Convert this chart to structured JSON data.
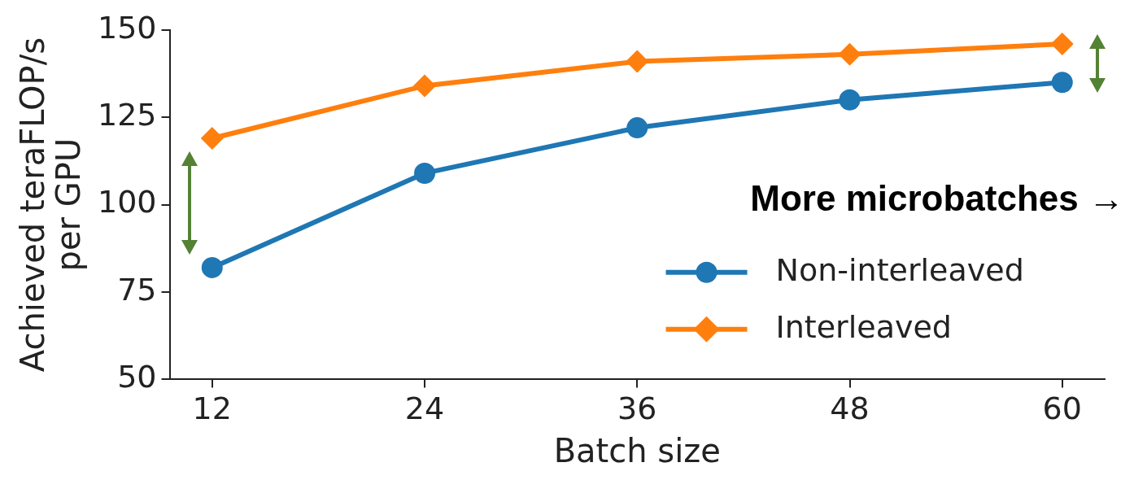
{
  "chart_data": {
    "type": "line",
    "xlabel": "Batch size",
    "ylabel": "Achieved teraFLOP/s per GPU",
    "x": [
      12,
      24,
      36,
      48,
      60
    ],
    "series": [
      {
        "name": "Non-interleaved",
        "color": "#1f77b4",
        "marker": "circle",
        "values": [
          82,
          109,
          122,
          130,
          135
        ]
      },
      {
        "name": "Interleaved",
        "color": "#ff7f0e",
        "marker": "diamond",
        "values": [
          119,
          134,
          141,
          143,
          146
        ]
      }
    ],
    "xlim": [
      9.6,
      62.4
    ],
    "xticks": [
      12,
      24,
      36,
      48,
      60
    ],
    "ylim": [
      50,
      150
    ],
    "yticks": [
      50,
      75,
      100,
      125,
      150
    ],
    "grid": false,
    "legend": "right",
    "annotations": [
      "More microbatches →"
    ]
  }
}
